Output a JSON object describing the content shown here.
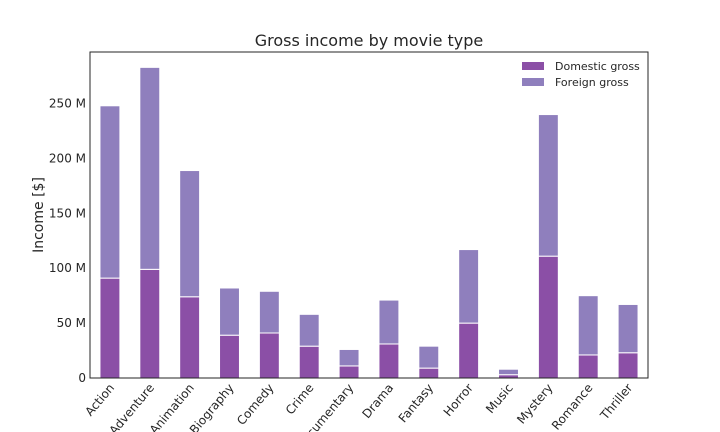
{
  "chart_data": {
    "type": "bar",
    "stacked": true,
    "title": "Gross income by movie type",
    "xlabel": "",
    "ylabel": "Income [$]",
    "ylim": [
      0,
      297
    ],
    "yticks": [
      0,
      50,
      100,
      150,
      200,
      250
    ],
    "ytick_labels": [
      "0",
      "50 M",
      "100 M",
      "150 M",
      "200 M",
      "250 M"
    ],
    "categories": [
      "Action",
      "Adventure",
      "Animation",
      "Biography",
      "Comedy",
      "Crime",
      "Documentary",
      "Drama",
      "Fantasy",
      "Horror",
      "Music",
      "Mystery",
      "Romance",
      "Thriller"
    ],
    "series": [
      {
        "name": "Domestic gross",
        "color": "#8b4fa6",
        "values": [
          91,
          99,
          74,
          39,
          41,
          29,
          11,
          31,
          9,
          50,
          3,
          111,
          21,
          23
        ]
      },
      {
        "name": "Foreign gross",
        "color": "#8f7fbd",
        "values": [
          157,
          184,
          115,
          43,
          38,
          29,
          15,
          40,
          20,
          67,
          5,
          129,
          54,
          44
        ]
      }
    ],
    "legend_position": "top-right",
    "grid": false
  }
}
